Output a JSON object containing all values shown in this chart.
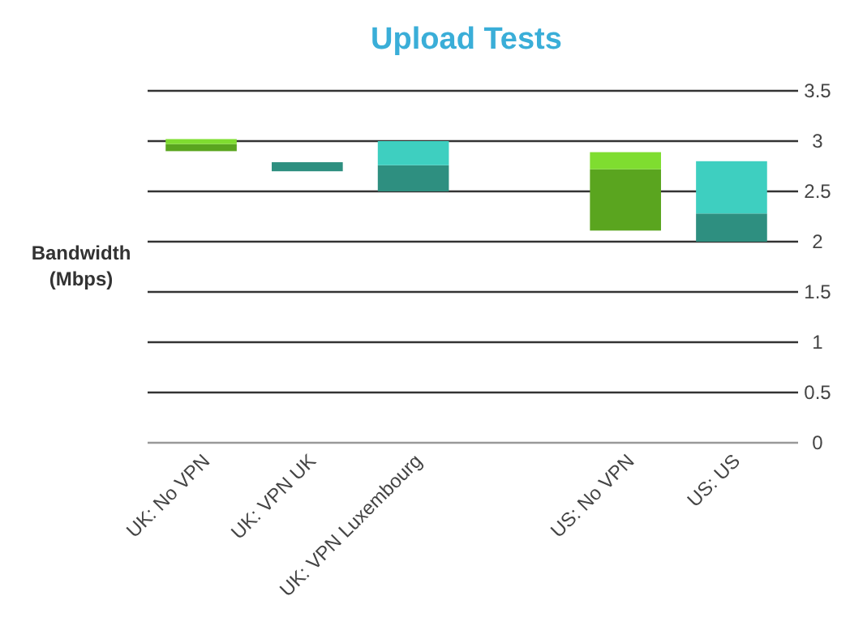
{
  "chart_data": {
    "type": "bar",
    "title": "Upload Tests",
    "ylabel": "Bandwidth\n(Mbps)",
    "categories": [
      "UK: No VPN",
      "UK: VPN UK",
      "UK: VPN Luxembourg",
      null,
      "US: No VPN",
      "US: US"
    ],
    "series": [
      {
        "colors": [
          "#5aa51f",
          "#2e8f80",
          "#2e8f80",
          null,
          "#5aa51f",
          "#2e8f80"
        ],
        "base": [
          2.9,
          2.7,
          2.5,
          null,
          2.11,
          2.0
        ],
        "values": [
          0.07,
          0.09,
          0.26,
          null,
          0.61,
          0.28
        ]
      },
      {
        "colors": [
          "#7fdd30",
          null,
          "#3ecfc0",
          null,
          "#7fdd30",
          "#3ecfc0"
        ],
        "base": [
          2.97,
          null,
          2.76,
          null,
          2.72,
          2.28
        ],
        "values": [
          0.05,
          null,
          0.24,
          null,
          0.17,
          0.52
        ]
      }
    ],
    "ylim": [
      0,
      3.5
    ],
    "yticks": [
      0,
      0.5,
      1,
      1.5,
      2,
      2.5,
      3,
      3.5
    ],
    "grid": "y"
  }
}
